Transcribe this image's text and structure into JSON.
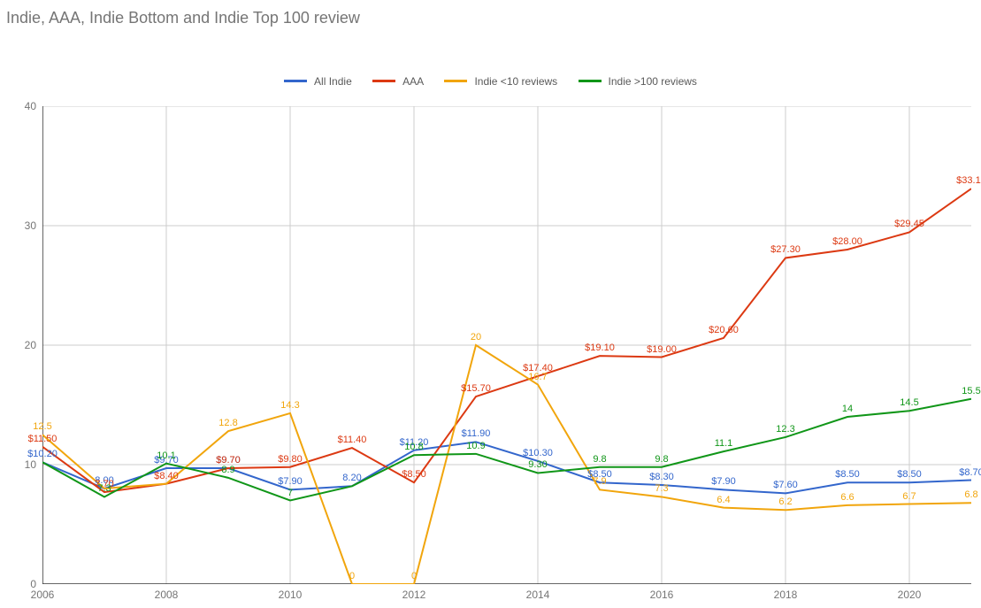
{
  "chart": {
    "type": "line",
    "title": "Indie, AAA, Indie Bottom and Indie Top 100 review",
    "title_fontsize": 18,
    "title_color": "#757575",
    "background_color": "#ffffff",
    "grid_color": "#cccccc",
    "axis_color": "#333333",
    "label_fontsize": 12,
    "label_color": "#757575",
    "datalabel_fontsize": 11,
    "line_width": 2,
    "x": {
      "min": 2006,
      "max": 2021,
      "ticks": [
        2006,
        2008,
        2010,
        2012,
        2014,
        2016,
        2018,
        2020
      ]
    },
    "y": {
      "min": 0,
      "max": 40,
      "ticks": [
        0,
        10,
        20,
        30,
        40
      ]
    },
    "years": [
      2006,
      2007,
      2008,
      2009,
      2010,
      2011,
      2012,
      2013,
      2014,
      2015,
      2016,
      2017,
      2018,
      2019,
      2020,
      2021
    ],
    "series": [
      {
        "id": "all_indie",
        "label": "All Indie",
        "color": "#3366cc",
        "values": [
          10.2,
          8.0,
          9.7,
          9.7,
          7.9,
          8.2,
          11.2,
          11.9,
          10.3,
          8.5,
          8.3,
          7.9,
          7.6,
          8.5,
          8.5,
          8.7
        ],
        "datalabels": [
          "$10.20",
          "8.00",
          "$9.70",
          "$9.70",
          "$7.90",
          "8.20",
          "$11.20",
          "$11.90",
          "$10.30",
          "$8.50",
          "$8.30",
          "$7.90",
          "$7.60",
          "$8.50",
          "$8.50",
          "$8.70"
        ]
      },
      {
        "id": "aaa",
        "label": "AAA",
        "color": "#dc3912",
        "values": [
          11.5,
          7.7,
          8.4,
          9.7,
          9.8,
          11.4,
          8.5,
          15.7,
          17.4,
          19.1,
          19.0,
          20.6,
          27.3,
          28.0,
          29.45,
          33.1
        ],
        "datalabels": [
          "$11.50",
          "7.70",
          "$8.40",
          "$9.70",
          "$9.80",
          "$11.40",
          "$8.50",
          "$15.70",
          "$17.40",
          "$19.10",
          "$19.00",
          "$20.60",
          "$27.30",
          "$28.00",
          "$29.45",
          "$33.10"
        ]
      },
      {
        "id": "indie_lt10",
        "label": "Indie <10 reviews",
        "color": "#f1a50c",
        "values": [
          12.5,
          8.0,
          8.4,
          12.8,
          14.3,
          0,
          0,
          20,
          16.7,
          7.9,
          7.3,
          6.4,
          6.2,
          6.6,
          6.7,
          6.8
        ],
        "datalabels": [
          "12.5",
          "",
          "",
          "12.8",
          "14.3",
          "0",
          "0",
          "20",
          "16.7",
          "7.9",
          "7.3",
          "6.4",
          "6.2",
          "6.6",
          "6.7",
          "6.8"
        ]
      },
      {
        "id": "indie_gt100",
        "label": "Indie >100 reviews",
        "color": "#109618",
        "values": [
          10.2,
          7.3,
          10.1,
          8.9,
          7.0,
          8.2,
          10.8,
          10.9,
          9.3,
          9.8,
          9.8,
          11.1,
          12.3,
          14,
          14.5,
          15.5
        ],
        "datalabels": [
          "",
          "7.3",
          "10.1",
          "8.9",
          "7",
          "",
          "10.8",
          "10.9",
          "9.30",
          "9.8",
          "9.8",
          "11.1",
          "12.3",
          "14",
          "14.5",
          "15.5"
        ]
      }
    ],
    "legend": {
      "position": "top",
      "items": [
        "All Indie",
        "AAA",
        "Indie <10 reviews",
        "Indie >100 reviews"
      ]
    }
  }
}
